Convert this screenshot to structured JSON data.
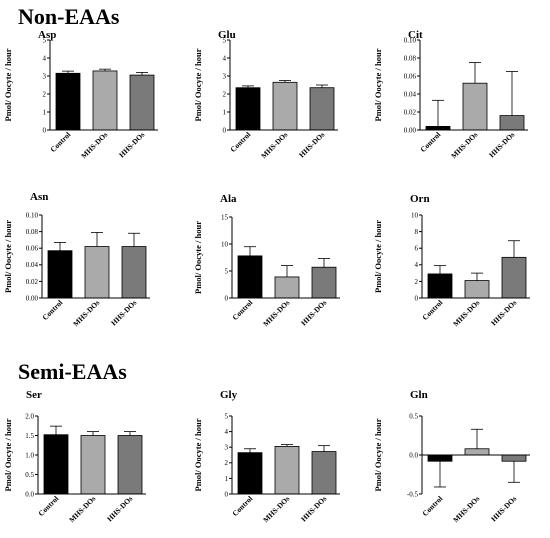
{
  "sections": {
    "non_eaas": "Non-EAAs",
    "semi_eaas": "Semi-EAAs"
  },
  "colors": {
    "control": "#000000",
    "mhs": "#aaaaaa",
    "hhs": "#7a7a7a"
  },
  "chart_data": [
    {
      "type": "bar",
      "title": "Asp",
      "categories": [
        "Control",
        "MHS-DOs",
        "HHS-DOs"
      ],
      "values": [
        3.15,
        3.28,
        3.05
      ],
      "errors": [
        0.12,
        0.1,
        0.15
      ],
      "ylabel": "Pmol/ Oocyte / hour",
      "ylim": [
        0,
        5
      ],
      "yticks": [
        "0",
        "1",
        "2",
        "3",
        "4",
        "5"
      ]
    },
    {
      "type": "bar",
      "title": "Glu",
      "categories": [
        "Control",
        "MHS-DOs",
        "HHS-DOs"
      ],
      "values": [
        2.35,
        2.65,
        2.35
      ],
      "errors": [
        0.1,
        0.1,
        0.15
      ],
      "ylabel": "Pmol/ Oocyte / hour",
      "ylim": [
        0,
        5
      ],
      "yticks": [
        "0",
        "1",
        "2",
        "3",
        "4",
        "5"
      ]
    },
    {
      "type": "bar",
      "title": "Cit",
      "categories": [
        "Control",
        "MHS-DOs",
        "HHS-DOs"
      ],
      "values": [
        0.004,
        0.052,
        0.016
      ],
      "errors": [
        0.029,
        0.023,
        0.049
      ],
      "ylabel": "Pmol/ Oocyte / hour",
      "ylim": [
        0,
        0.1
      ],
      "yticks": [
        "0.00",
        "0.02",
        "0.04",
        "0.06",
        "0.08",
        "0.10"
      ]
    },
    {
      "type": "bar",
      "title": "Asn",
      "categories": [
        "Control",
        "MHS-DOs",
        "HHS-DOs"
      ],
      "values": [
        0.057,
        0.062,
        0.062
      ],
      "errors": [
        0.01,
        0.017,
        0.016
      ],
      "ylabel": "Pmol/ Oocyte / hour",
      "ylim": [
        0,
        0.1
      ],
      "yticks": [
        "0.00",
        "0.02",
        "0.04",
        "0.06",
        "0.08",
        "0.10"
      ]
    },
    {
      "type": "bar",
      "title": "Ala",
      "categories": [
        "Control",
        "MHS-DOs",
        "HHS-DOs"
      ],
      "values": [
        7.8,
        3.9,
        5.7
      ],
      "errors": [
        1.7,
        2.1,
        1.6
      ],
      "ylabel": "Pmol/ Oocyte / hour",
      "ylim": [
        0,
        15
      ],
      "yticks": [
        "0",
        "5",
        "10",
        "15"
      ]
    },
    {
      "type": "bar",
      "title": "Orn",
      "categories": [
        "Control",
        "MHS-DOs",
        "HHS-DOs"
      ],
      "values": [
        2.9,
        2.1,
        4.9
      ],
      "errors": [
        1.0,
        0.9,
        2.0
      ],
      "ylabel": "Pmol/ Oocyte / hour",
      "ylim": [
        0,
        10
      ],
      "yticks": [
        "0",
        "2",
        "4",
        "6",
        "8",
        "10"
      ]
    },
    {
      "type": "bar",
      "title": "Ser",
      "categories": [
        "Control",
        "MHS-DOs",
        "HHS-DOs"
      ],
      "values": [
        1.52,
        1.5,
        1.5
      ],
      "errors": [
        0.22,
        0.1,
        0.1
      ],
      "ylabel": "Pmol/ Oocyte / hour",
      "ylim": [
        0,
        2
      ],
      "yticks": [
        "0.0",
        "0.5",
        "1.0",
        "1.5",
        "2.0"
      ]
    },
    {
      "type": "bar",
      "title": "Gly",
      "categories": [
        "Control",
        "MHS-DOs",
        "HHS-DOs"
      ],
      "values": [
        2.65,
        3.05,
        2.72
      ],
      "errors": [
        0.25,
        0.12,
        0.38
      ],
      "ylabel": "Pmol/ Oocyte / hour",
      "ylim": [
        0,
        5
      ],
      "yticks": [
        "0",
        "1",
        "2",
        "3",
        "4",
        "5"
      ]
    },
    {
      "type": "bar",
      "title": "Gln",
      "categories": [
        "Control",
        "MHS-DOs",
        "HHS-DOs"
      ],
      "values": [
        -0.08,
        0.08,
        -0.08
      ],
      "errors": [
        0.33,
        0.25,
        0.27
      ],
      "ylabel": "Pmol/ Oocyte / hour",
      "ylim": [
        -0.5,
        0.5
      ],
      "yticks": [
        "-0.5",
        "0.0",
        "0.5"
      ]
    }
  ]
}
